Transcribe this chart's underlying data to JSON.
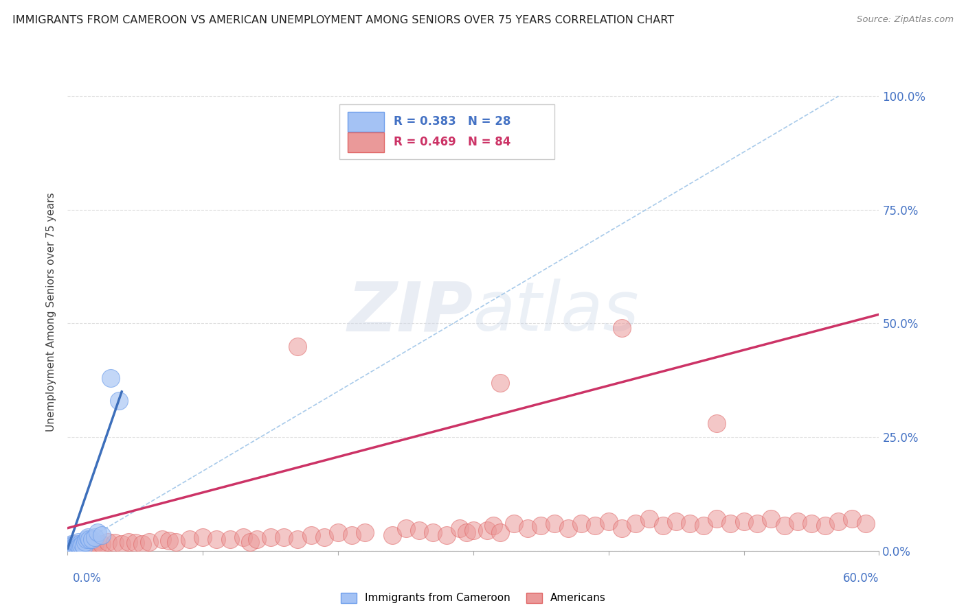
{
  "title": "IMMIGRANTS FROM CAMEROON VS AMERICAN UNEMPLOYMENT AMONG SENIORS OVER 75 YEARS CORRELATION CHART",
  "source": "Source: ZipAtlas.com",
  "ylabel": "Unemployment Among Seniors over 75 years",
  "xmin": 0.0,
  "xmax": 0.6,
  "ymin": 0.0,
  "ymax": 1.05,
  "y_tick_vals": [
    0.0,
    0.25,
    0.5,
    0.75,
    1.0
  ],
  "y_tick_labels": [
    "0.0%",
    "25.0%",
    "50.0%",
    "75.0%",
    "100.0%"
  ],
  "legend_blue_text": "R = 0.383   N = 28",
  "legend_pink_text": "R = 0.469   N = 84",
  "legend_label_blue": "Immigrants from Cameroon",
  "legend_label_pink": "Americans",
  "background_color": "#ffffff",
  "watermark_text": "ZIPatlas",
  "blue_fill": "#a4c2f4",
  "blue_edge": "#6d9eeb",
  "pink_fill": "#ea9999",
  "pink_edge": "#e06666",
  "blue_trend_color": "#3d6fbb",
  "pink_trend_color": "#cc3366",
  "dash_color": "#9fc5e8",
  "grid_color": "#e0e0e0",
  "blue_scatter_x": [
    0.001,
    0.002,
    0.003,
    0.003,
    0.004,
    0.005,
    0.005,
    0.006,
    0.006,
    0.007,
    0.007,
    0.008,
    0.008,
    0.009,
    0.009,
    0.01,
    0.011,
    0.012,
    0.013,
    0.014,
    0.015,
    0.016,
    0.018,
    0.02,
    0.022,
    0.025,
    0.032,
    0.038
  ],
  "blue_scatter_y": [
    0.01,
    0.012,
    0.01,
    0.015,
    0.012,
    0.01,
    0.008,
    0.012,
    0.008,
    0.01,
    0.015,
    0.012,
    0.02,
    0.015,
    0.01,
    0.012,
    0.015,
    0.01,
    0.02,
    0.025,
    0.03,
    0.025,
    0.025,
    0.03,
    0.04,
    0.035,
    0.38,
    0.33
  ],
  "pink_scatter_x": [
    0.002,
    0.003,
    0.004,
    0.005,
    0.006,
    0.007,
    0.008,
    0.009,
    0.01,
    0.011,
    0.012,
    0.013,
    0.015,
    0.018,
    0.02,
    0.022,
    0.025,
    0.03,
    0.035,
    0.04,
    0.045,
    0.05,
    0.055,
    0.06,
    0.07,
    0.075,
    0.08,
    0.09,
    0.1,
    0.11,
    0.12,
    0.13,
    0.135,
    0.14,
    0.15,
    0.16,
    0.17,
    0.18,
    0.19,
    0.2,
    0.21,
    0.22,
    0.24,
    0.25,
    0.26,
    0.27,
    0.28,
    0.29,
    0.295,
    0.3,
    0.31,
    0.315,
    0.32,
    0.33,
    0.34,
    0.35,
    0.36,
    0.37,
    0.38,
    0.39,
    0.4,
    0.41,
    0.42,
    0.43,
    0.44,
    0.45,
    0.46,
    0.47,
    0.48,
    0.49,
    0.5,
    0.51,
    0.52,
    0.53,
    0.54,
    0.55,
    0.56,
    0.57,
    0.58,
    0.59,
    0.17,
    0.32,
    0.41,
    0.48
  ],
  "pink_scatter_y": [
    0.01,
    0.012,
    0.01,
    0.015,
    0.01,
    0.012,
    0.01,
    0.015,
    0.012,
    0.01,
    0.008,
    0.01,
    0.012,
    0.01,
    0.015,
    0.012,
    0.015,
    0.02,
    0.018,
    0.015,
    0.02,
    0.018,
    0.015,
    0.02,
    0.025,
    0.022,
    0.02,
    0.025,
    0.03,
    0.025,
    0.025,
    0.03,
    0.02,
    0.025,
    0.03,
    0.03,
    0.025,
    0.035,
    0.03,
    0.04,
    0.035,
    0.04,
    0.035,
    0.05,
    0.045,
    0.04,
    0.035,
    0.05,
    0.04,
    0.045,
    0.045,
    0.055,
    0.04,
    0.06,
    0.05,
    0.055,
    0.06,
    0.05,
    0.06,
    0.055,
    0.065,
    0.05,
    0.06,
    0.07,
    0.055,
    0.065,
    0.06,
    0.055,
    0.07,
    0.06,
    0.065,
    0.06,
    0.07,
    0.055,
    0.065,
    0.06,
    0.055,
    0.065,
    0.07,
    0.06,
    0.45,
    0.37,
    0.49,
    0.28
  ],
  "blue_trend_x": [
    0.0,
    0.04
  ],
  "blue_trend_y": [
    0.005,
    0.35
  ],
  "pink_trend_x": [
    0.0,
    0.6
  ],
  "pink_trend_y": [
    0.05,
    0.52
  ],
  "dashed_line_x": [
    0.0,
    0.57
  ],
  "dashed_line_y": [
    0.0,
    1.0
  ]
}
